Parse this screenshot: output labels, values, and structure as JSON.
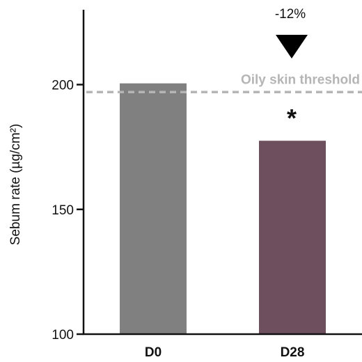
{
  "chart_data": {
    "type": "bar",
    "title": "",
    "xlabel": "",
    "ylabel": "Sebum rate (µg/cm²)",
    "categories": [
      "D0",
      "D28"
    ],
    "values": [
      200.5,
      177.5
    ],
    "colors": [
      "#808080",
      "#6e4f5d"
    ],
    "ylim": [
      100,
      230
    ],
    "yticks": [
      100,
      150,
      200
    ],
    "grid": false,
    "threshold": {
      "value": 197,
      "label": "Oily skin threshold",
      "color": "#b5b5b5"
    },
    "annotations": {
      "change_label": "-12%",
      "significance_marker": "*",
      "arrow": "down-triangle"
    }
  }
}
